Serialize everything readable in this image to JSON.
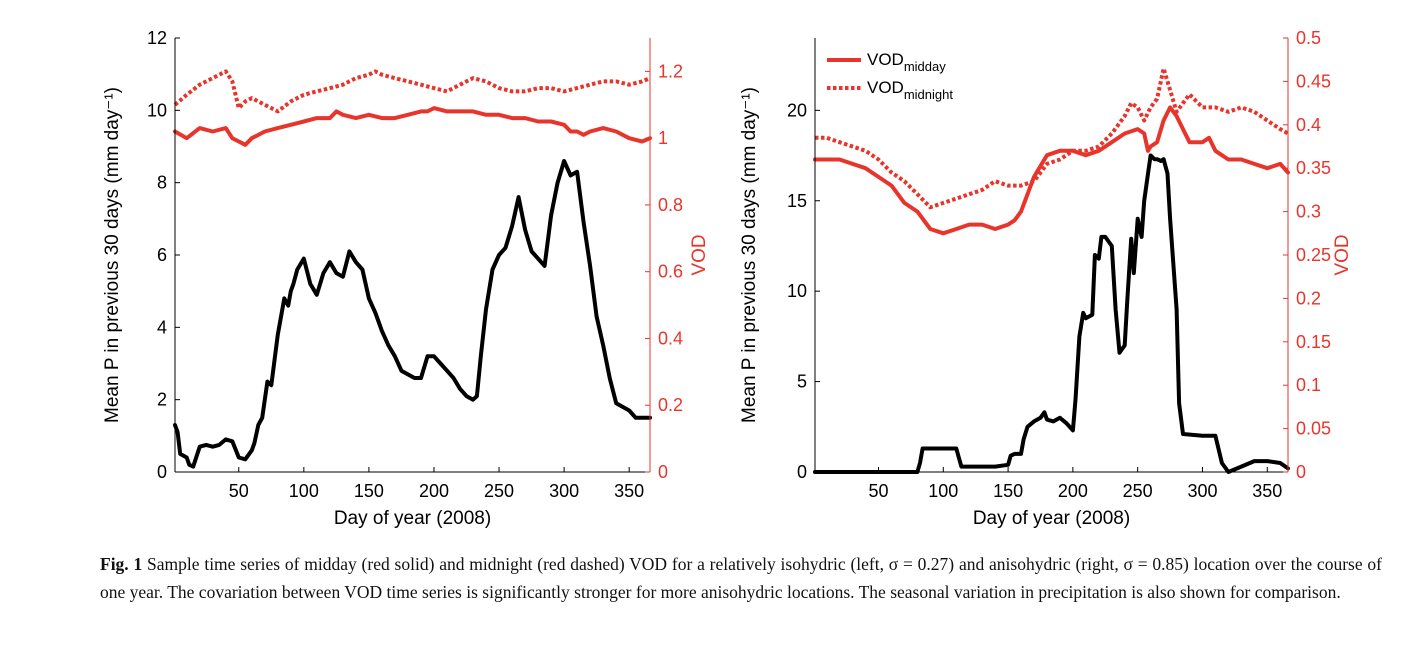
{
  "chart_data": [
    {
      "type": "line",
      "xlabel": "Day of year (2008)",
      "ylabel_left": "Mean P in previous 30 days (mm day⁻¹)",
      "ylabel_right": "VOD",
      "xlim": [
        1,
        366
      ],
      "ylim_left": [
        0,
        12
      ],
      "ylim_right": [
        0,
        1.3
      ],
      "x_ticks": [
        50,
        100,
        150,
        200,
        250,
        300,
        350
      ],
      "y_left_ticks": [
        0,
        2,
        4,
        6,
        8,
        10,
        12
      ],
      "y_right_ticks": [
        0,
        0.2,
        0.4,
        0.6,
        0.8,
        1,
        1.2
      ],
      "legend": [],
      "series": [
        {
          "axis": "left",
          "style": "solid",
          "color": "#000000",
          "x": [
            1,
            3,
            5,
            10,
            12,
            15,
            20,
            25,
            30,
            35,
            40,
            45,
            50,
            55,
            60,
            62,
            65,
            68,
            70,
            72,
            75,
            80,
            85,
            88,
            90,
            92,
            95,
            100,
            105,
            110,
            115,
            120,
            125,
            130,
            135,
            140,
            145,
            150,
            155,
            160,
            165,
            170,
            175,
            180,
            185,
            190,
            195,
            200,
            205,
            210,
            215,
            220,
            225,
            230,
            233,
            236,
            240,
            245,
            250,
            255,
            260,
            265,
            270,
            275,
            280,
            285,
            290,
            295,
            300,
            305,
            310,
            315,
            320,
            325,
            330,
            335,
            340,
            345,
            350,
            355,
            360,
            366
          ],
          "y": [
            1.3,
            1.1,
            0.5,
            0.4,
            0.2,
            0.15,
            0.7,
            0.75,
            0.7,
            0.75,
            0.9,
            0.85,
            0.4,
            0.35,
            0.6,
            0.8,
            1.3,
            1.5,
            2.0,
            2.5,
            2.4,
            3.8,
            4.8,
            4.6,
            5.0,
            5.2,
            5.6,
            5.9,
            5.2,
            4.9,
            5.5,
            5.8,
            5.5,
            5.4,
            6.1,
            5.8,
            5.6,
            4.8,
            4.4,
            3.9,
            3.5,
            3.2,
            2.8,
            2.7,
            2.6,
            2.6,
            3.2,
            3.2,
            3.0,
            2.8,
            2.6,
            2.3,
            2.1,
            2.0,
            2.1,
            3.2,
            4.5,
            5.6,
            6.0,
            6.2,
            6.8,
            7.6,
            6.7,
            6.1,
            5.9,
            5.7,
            7.1,
            8.0,
            8.6,
            8.2,
            8.3,
            6.9,
            5.7,
            4.3,
            3.5,
            2.6,
            1.9,
            1.8,
            1.7,
            1.5,
            1.5,
            1.5
          ]
        },
        {
          "axis": "right",
          "style": "solid",
          "color": "#e8352c",
          "x": [
            1,
            10,
            20,
            30,
            40,
            45,
            50,
            55,
            60,
            70,
            80,
            90,
            100,
            110,
            120,
            125,
            130,
            140,
            150,
            160,
            170,
            180,
            190,
            195,
            200,
            210,
            220,
            230,
            240,
            250,
            260,
            270,
            280,
            290,
            300,
            305,
            310,
            315,
            320,
            330,
            340,
            350,
            360,
            366
          ],
          "y": [
            1.02,
            1.0,
            1.03,
            1.02,
            1.03,
            1.0,
            0.99,
            0.98,
            1.0,
            1.02,
            1.03,
            1.04,
            1.05,
            1.06,
            1.06,
            1.08,
            1.07,
            1.06,
            1.07,
            1.06,
            1.06,
            1.07,
            1.08,
            1.08,
            1.09,
            1.08,
            1.08,
            1.08,
            1.07,
            1.07,
            1.06,
            1.06,
            1.05,
            1.05,
            1.04,
            1.02,
            1.02,
            1.01,
            1.02,
            1.03,
            1.02,
            1.0,
            0.99,
            1.0
          ]
        },
        {
          "axis": "right",
          "style": "dotted",
          "color": "#e8352c",
          "x": [
            1,
            10,
            20,
            30,
            40,
            45,
            50,
            55,
            60,
            70,
            80,
            90,
            100,
            110,
            120,
            130,
            140,
            150,
            155,
            160,
            170,
            180,
            190,
            200,
            210,
            220,
            230,
            240,
            250,
            260,
            270,
            280,
            290,
            300,
            310,
            320,
            330,
            340,
            350,
            360,
            366
          ],
          "y": [
            1.1,
            1.13,
            1.16,
            1.18,
            1.2,
            1.17,
            1.09,
            1.11,
            1.12,
            1.1,
            1.08,
            1.11,
            1.13,
            1.14,
            1.15,
            1.16,
            1.18,
            1.19,
            1.2,
            1.19,
            1.18,
            1.17,
            1.16,
            1.15,
            1.14,
            1.16,
            1.18,
            1.17,
            1.15,
            1.14,
            1.14,
            1.15,
            1.15,
            1.14,
            1.15,
            1.16,
            1.17,
            1.17,
            1.16,
            1.17,
            1.18
          ]
        }
      ]
    },
    {
      "type": "line",
      "xlabel": "Day of year (2008)",
      "ylabel_left": "Mean P in previous 30 days (mm day⁻¹)",
      "ylabel_right": "VOD",
      "xlim": [
        1,
        366
      ],
      "ylim_left": [
        0,
        24
      ],
      "ylim_right": [
        0,
        0.5
      ],
      "x_ticks": [
        50,
        100,
        150,
        200,
        250,
        300,
        350
      ],
      "y_left_ticks": [
        0,
        5,
        10,
        15,
        20
      ],
      "y_right_ticks": [
        0,
        0.05,
        0.1,
        0.15,
        0.2,
        0.25,
        0.3,
        0.35,
        0.4,
        0.45,
        0.5
      ],
      "legend": [
        {
          "base": "VOD",
          "sub": "midday",
          "style": "solid"
        },
        {
          "base": "VOD",
          "sub": "midnight",
          "style": "dotted"
        }
      ],
      "legend_placement": "top-left",
      "series": [
        {
          "axis": "left",
          "style": "solid",
          "color": "#000000",
          "x": [
            1,
            20,
            40,
            60,
            80,
            82,
            84,
            90,
            100,
            110,
            112,
            114,
            120,
            140,
            150,
            152,
            155,
            160,
            162,
            165,
            170,
            175,
            178,
            180,
            185,
            190,
            195,
            200,
            202,
            205,
            208,
            210,
            215,
            217,
            220,
            222,
            225,
            230,
            233,
            236,
            240,
            242,
            245,
            247,
            250,
            253,
            255,
            258,
            260,
            263,
            265,
            268,
            270,
            273,
            275,
            280,
            282,
            285,
            300,
            310,
            315,
            320,
            330,
            340,
            350,
            360,
            366
          ],
          "y": [
            0,
            0,
            0,
            0,
            0,
            0.5,
            1.3,
            1.3,
            1.3,
            1.3,
            0.8,
            0.3,
            0.3,
            0.3,
            0.4,
            0.9,
            1.0,
            1.0,
            1.8,
            2.5,
            2.8,
            3.0,
            3.3,
            2.9,
            2.8,
            3.0,
            2.7,
            2.3,
            4.0,
            7.5,
            8.8,
            8.5,
            8.7,
            12.0,
            11.8,
            13.0,
            13.0,
            12.5,
            9.0,
            6.6,
            7.0,
            9.5,
            12.9,
            11.0,
            14.0,
            13.0,
            15.0,
            16.5,
            17.5,
            17.3,
            17.3,
            17.2,
            17.3,
            16.5,
            14.0,
            9.0,
            3.8,
            2.1,
            2.0,
            2.0,
            0.5,
            0,
            0.3,
            0.6,
            0.6,
            0.5,
            0.2
          ]
        },
        {
          "axis": "right",
          "style": "solid",
          "color": "#e8352c",
          "x": [
            1,
            10,
            20,
            30,
            40,
            50,
            60,
            70,
            80,
            90,
            100,
            110,
            120,
            130,
            140,
            150,
            155,
            160,
            170,
            180,
            190,
            200,
            210,
            220,
            230,
            240,
            250,
            255,
            258,
            260,
            265,
            270,
            275,
            280,
            285,
            290,
            300,
            305,
            310,
            315,
            320,
            330,
            340,
            350,
            360,
            366
          ],
          "y": [
            0.36,
            0.36,
            0.36,
            0.355,
            0.35,
            0.34,
            0.33,
            0.31,
            0.3,
            0.28,
            0.275,
            0.28,
            0.285,
            0.285,
            0.28,
            0.285,
            0.29,
            0.3,
            0.34,
            0.365,
            0.37,
            0.37,
            0.365,
            0.37,
            0.38,
            0.39,
            0.395,
            0.39,
            0.37,
            0.375,
            0.38,
            0.405,
            0.42,
            0.41,
            0.395,
            0.38,
            0.38,
            0.385,
            0.37,
            0.365,
            0.36,
            0.36,
            0.355,
            0.35,
            0.355,
            0.345
          ]
        },
        {
          "axis": "right",
          "style": "dotted",
          "color": "#e8352c",
          "x": [
            1,
            10,
            20,
            30,
            40,
            50,
            60,
            70,
            80,
            90,
            100,
            110,
            120,
            130,
            140,
            150,
            160,
            170,
            180,
            190,
            200,
            210,
            220,
            230,
            240,
            245,
            250,
            255,
            260,
            265,
            270,
            275,
            280,
            290,
            300,
            310,
            320,
            330,
            340,
            350,
            360,
            366
          ],
          "y": [
            0.385,
            0.385,
            0.38,
            0.375,
            0.37,
            0.36,
            0.345,
            0.335,
            0.32,
            0.305,
            0.31,
            0.315,
            0.32,
            0.325,
            0.335,
            0.33,
            0.33,
            0.335,
            0.355,
            0.36,
            0.37,
            0.37,
            0.375,
            0.39,
            0.41,
            0.425,
            0.42,
            0.405,
            0.42,
            0.43,
            0.465,
            0.44,
            0.415,
            0.435,
            0.42,
            0.42,
            0.415,
            0.42,
            0.415,
            0.405,
            0.395,
            0.39
          ]
        }
      ]
    }
  ],
  "caption": {
    "label": "Fig. 1",
    "text": " Sample time series of midday (red solid) and midnight (red dashed) VOD for a relatively isohydric (left, σ = 0.27) and anisohydric (right, σ = 0.85) location over the course of one year. The covariation between VOD time series is significantly stronger for more anisohydric locations. The seasonal variation in precipitation is also shown for comparison."
  }
}
